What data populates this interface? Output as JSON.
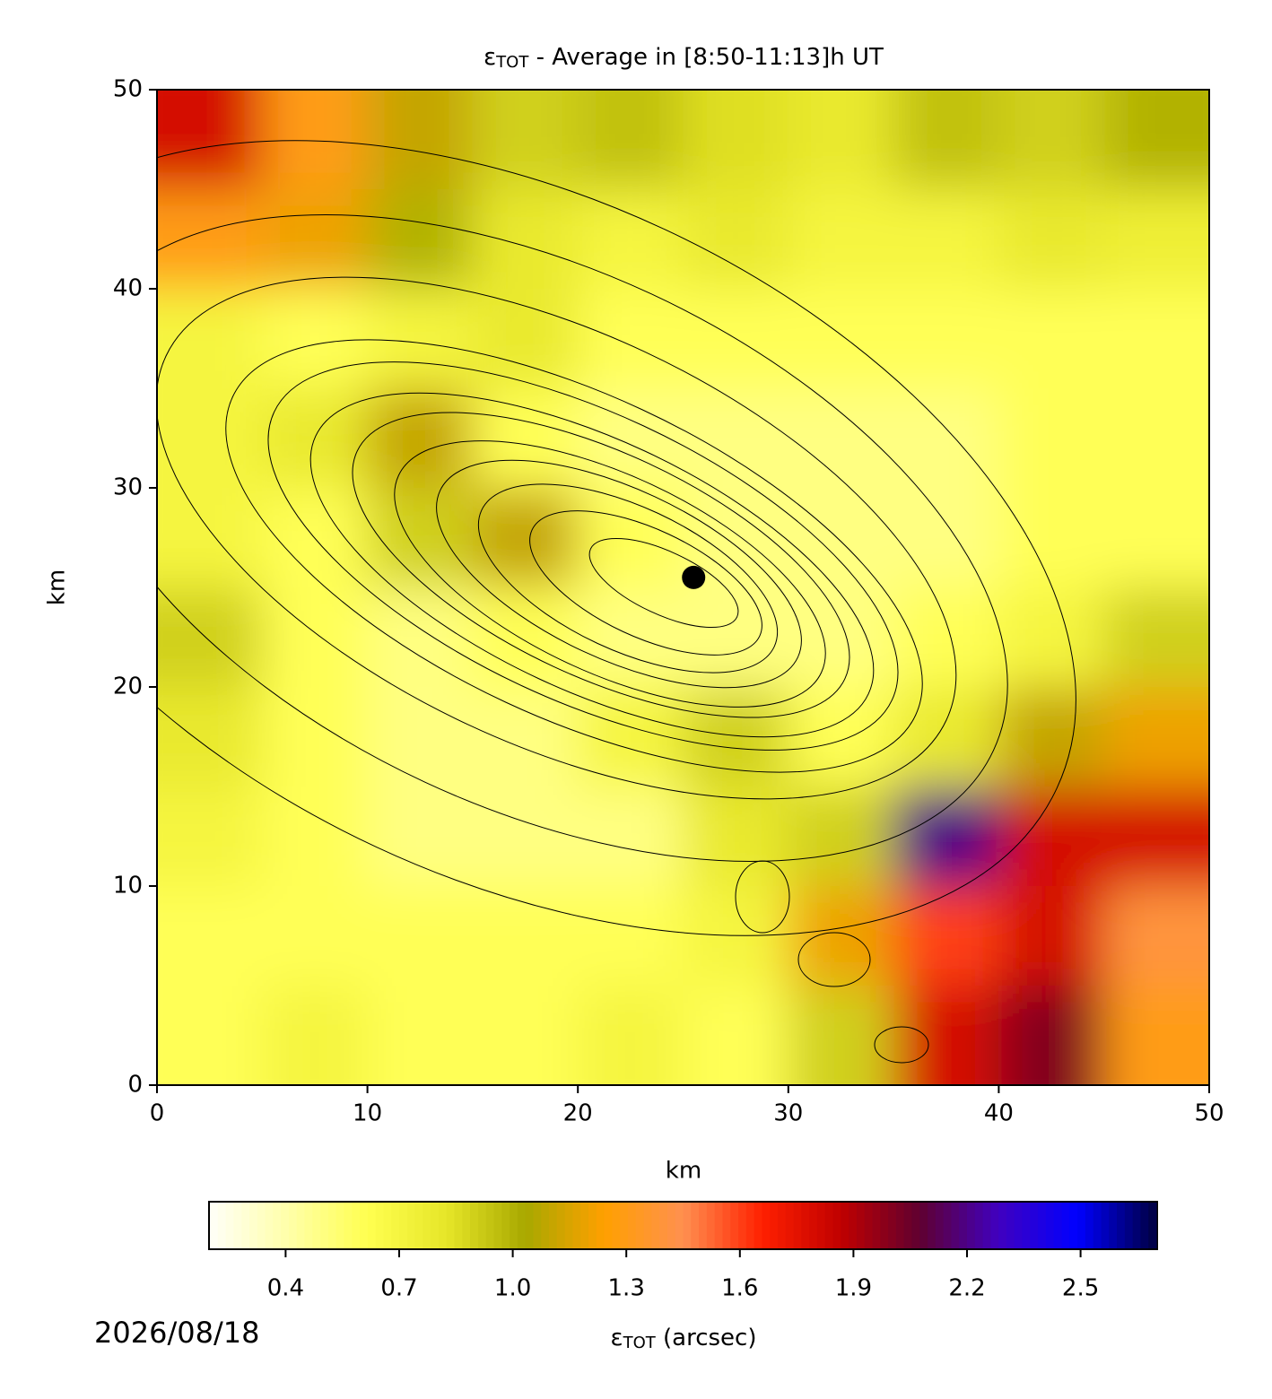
{
  "chart_data": {
    "type": "heatmap",
    "title_symbol": "ε",
    "title_subscript": "TOT",
    "title": " - Average in [8:50-11:13]h UT",
    "x_label": "km",
    "y_label": "km",
    "xlim": [
      0,
      50
    ],
    "ylim": [
      0,
      50
    ],
    "xticks": [
      0,
      10,
      20,
      30,
      40,
      50
    ],
    "yticks": [
      0,
      10,
      20,
      30,
      40,
      50
    ],
    "x": [
      2.5,
      7.5,
      12.5,
      17.5,
      22.5,
      27.5,
      32.5,
      37.5,
      42.5,
      47.5
    ],
    "y": [
      47.5,
      42.5,
      37.5,
      32.5,
      27.5,
      22.5,
      17.5,
      12.5,
      7.5,
      2.5
    ],
    "z": [
      [
        1.8,
        1.3,
        1.1,
        0.9,
        0.95,
        0.85,
        0.8,
        0.95,
        0.9,
        1.0
      ],
      [
        1.3,
        1.2,
        1.0,
        0.8,
        0.7,
        0.8,
        0.7,
        0.7,
        0.8,
        0.75
      ],
      [
        0.7,
        0.6,
        0.7,
        0.8,
        0.6,
        0.6,
        0.6,
        0.6,
        0.6,
        0.6
      ],
      [
        0.7,
        0.8,
        1.1,
        0.6,
        0.5,
        0.5,
        0.5,
        0.5,
        0.6,
        0.6
      ],
      [
        0.7,
        0.6,
        0.9,
        1.1,
        0.6,
        0.5,
        0.5,
        0.5,
        0.6,
        0.6
      ],
      [
        0.9,
        0.6,
        0.5,
        0.6,
        0.5,
        0.5,
        0.5,
        0.6,
        0.7,
        0.9
      ],
      [
        0.8,
        0.6,
        0.5,
        0.5,
        0.7,
        0.9,
        0.6,
        0.8,
        1.1,
        1.2
      ],
      [
        0.7,
        0.6,
        0.5,
        0.5,
        0.5,
        0.8,
        0.9,
        2.2,
        1.8,
        1.8
      ],
      [
        0.6,
        0.6,
        0.6,
        0.6,
        0.6,
        0.7,
        1.2,
        1.6,
        1.8,
        1.4
      ],
      [
        0.6,
        0.7,
        0.6,
        0.6,
        0.7,
        0.6,
        0.9,
        1.8,
        2.0,
        1.3
      ]
    ],
    "marker": {
      "x": 25.5,
      "y": 25.5
    },
    "clim": [
      0.2,
      2.7
    ],
    "colors": [
      "#fffff8",
      "#ffffa8",
      "#ffff50",
      "#e6e628",
      "#a8a800",
      "#ffa000",
      "#ff9050",
      "#ff2000",
      "#c00000",
      "#600030",
      "#4000c0",
      "#0000ff",
      "#000040"
    ],
    "cticks": [
      0.4,
      0.7,
      {
        "value": 1.0,
        "label": "1.0"
      },
      1.3,
      1.6,
      1.9,
      2.2,
      2.5
    ],
    "colorbar_symbol": "ε",
    "colorbar_subscript": "TOT",
    "colorbar_label": " (arcsec)",
    "date": "2026/08/18"
  }
}
